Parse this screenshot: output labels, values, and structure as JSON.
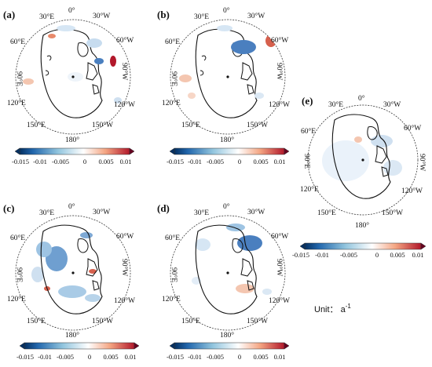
{
  "colormap": {
    "low": "#2166ac",
    "mid": "#ffffff",
    "high": "#b2182b"
  },
  "longitude_labels": {
    "lon_0": "0°",
    "lon_30e": "30°E",
    "lon_30w": "30°W",
    "lon_60e": "60°E",
    "lon_60w": "60°W",
    "lon_90e": "90°E",
    "lon_90w": "90°W",
    "lon_120e": "120°E",
    "lon_120w": "120°W",
    "lon_150e": "150°E",
    "lon_150w": "150°W",
    "lon_180": "180°"
  },
  "panels": [
    {
      "letter": "(a)",
      "ticks": [
        "-0.015",
        "-0.01",
        "-0.005",
        "0",
        "0.005",
        "0.01"
      ]
    },
    {
      "letter": "(b)",
      "ticks": [
        "-0.015",
        "-0.01",
        "-0.005",
        "0",
        "0.005",
        "0.01"
      ]
    },
    {
      "letter": "(c)",
      "ticks": [
        "-0.015",
        "-0.01",
        "-0.005",
        "0",
        "0.005",
        "0.01"
      ]
    },
    {
      "letter": "(d)",
      "ticks": [
        "-0.015",
        "-0.01",
        "-0.005",
        "0",
        "0.005",
        "0.01"
      ]
    },
    {
      "letter": "(e)",
      "ticks": [
        "-0.015",
        "-0.01",
        "-0.005",
        "0",
        "0.005",
        "0.01"
      ]
    }
  ],
  "unit_label": "Unit： a",
  "unit_exponent": "-1"
}
